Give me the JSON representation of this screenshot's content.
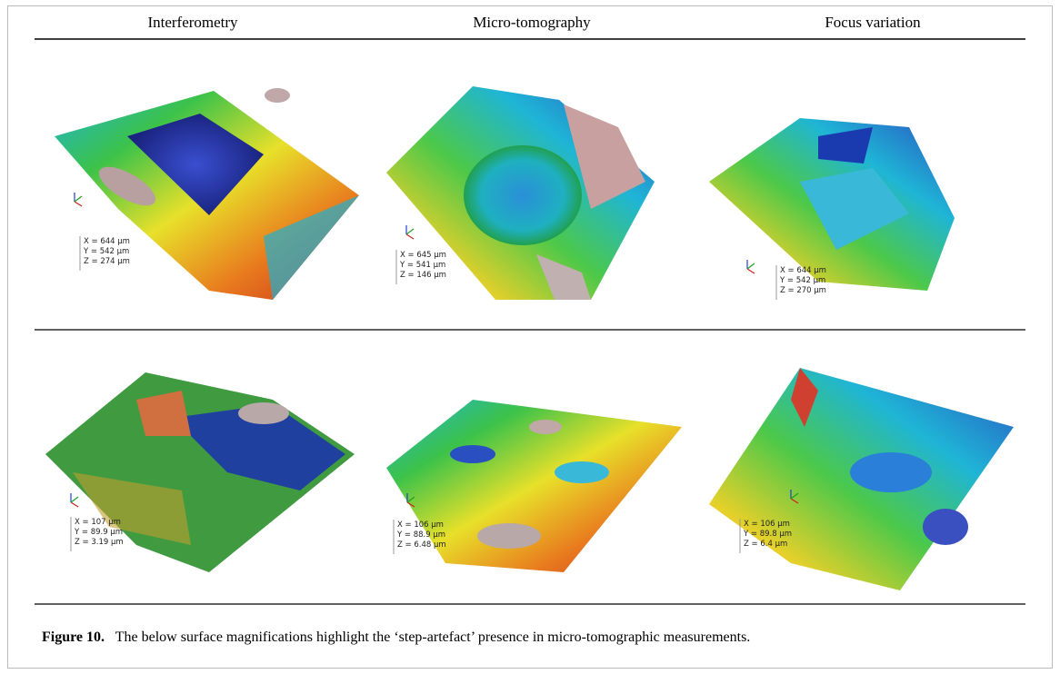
{
  "figure": {
    "columns": [
      "Interferometry",
      "Micro-tomography",
      "Focus variation"
    ],
    "panels": [
      [
        [
          "X = 644 µm",
          "Y = 542 µm",
          "Z = 274 µm"
        ],
        [
          "X = 645 µm",
          "Y = 541 µm",
          "Z = 146 µm"
        ],
        [
          "X = 644 µm",
          "Y = 542 µm",
          "Z = 270 µm"
        ]
      ],
      [
        [
          "X = 107 µm",
          "Y = 89.9 µm",
          "Z = 3.19 µm"
        ],
        [
          "X = 106 µm",
          "Y = 88.9 µm",
          "Z = 6.48 µm"
        ],
        [
          "X = 106 µm",
          "Y = 89.8 µm",
          "Z = 6.4 µm"
        ]
      ]
    ],
    "caption": {
      "label": "Figure 10.",
      "text": "The below surface magnifications highlight the ‘step-artefact’ presence in micro-tomographic measurements."
    }
  }
}
